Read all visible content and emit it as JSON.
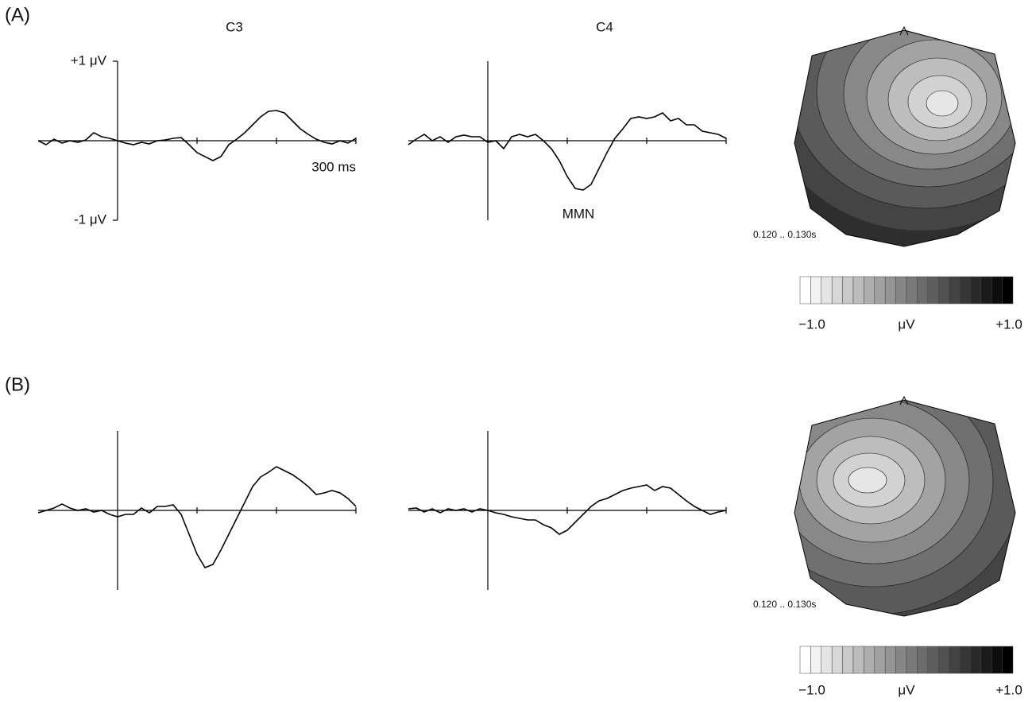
{
  "panels": [
    {
      "label": "(A)",
      "topomap_label": "0.120 .. 0.130s",
      "colorbar_labels": [
        "−1.0",
        "μV",
        "+1.0"
      ]
    },
    {
      "label": "(B)",
      "topomap_label": "0.120 .. 0.130s",
      "colorbar_labels": [
        "−1.0",
        "μV",
        "+1.0"
      ]
    }
  ],
  "chart_data": [
    {
      "type": "line",
      "title": "C3",
      "color": "#000000",
      "xlim": [
        -100,
        300
      ],
      "xticks": [
        100,
        200,
        {
          "value": 300,
          "label": "300 ms"
        }
      ],
      "ylim": [
        -1,
        1
      ],
      "yticks": [
        {
          "value": 1,
          "label": "+1 μV"
        },
        {
          "value": -1,
          "label": "-1 μV"
        }
      ],
      "x": [
        -100,
        -90,
        -80,
        -70,
        -60,
        -50,
        -40,
        -30,
        -20,
        -10,
        0,
        10,
        20,
        30,
        40,
        50,
        60,
        70,
        80,
        90,
        100,
        110,
        120,
        130,
        140,
        150,
        160,
        170,
        180,
        190,
        200,
        210,
        220,
        230,
        240,
        250,
        260,
        270,
        280,
        290,
        300
      ],
      "values": [
        0,
        -0.05,
        0.02,
        -0.03,
        0,
        -0.02,
        0.01,
        0.1,
        0.05,
        0.03,
        0,
        -0.03,
        -0.05,
        -0.02,
        -0.04,
        0,
        0.01,
        0.03,
        0.04,
        -0.05,
        -0.15,
        -0.2,
        -0.25,
        -0.2,
        -0.05,
        0.02,
        0.1,
        0.2,
        0.3,
        0.37,
        0.38,
        0.35,
        0.25,
        0.15,
        0.08,
        0.02,
        -0.02,
        -0.04,
        0,
        -0.03,
        0.03
      ]
    },
    {
      "type": "line",
      "title": "C4",
      "annotation": "MMN",
      "color": "#000000",
      "xlim": [
        -100,
        300
      ],
      "xticks": [
        100,
        200,
        300
      ],
      "ylim": [
        -1,
        1
      ],
      "x": [
        -100,
        -90,
        -80,
        -70,
        -60,
        -50,
        -40,
        -30,
        -20,
        -10,
        0,
        10,
        20,
        30,
        40,
        50,
        60,
        70,
        80,
        90,
        100,
        110,
        120,
        130,
        140,
        150,
        160,
        170,
        180,
        190,
        200,
        210,
        220,
        230,
        240,
        250,
        260,
        270,
        280,
        290,
        300
      ],
      "values": [
        -0.05,
        0.02,
        0.08,
        0,
        0.05,
        -0.02,
        0.05,
        0.07,
        0.05,
        0.05,
        -0.02,
        0,
        -0.1,
        0.05,
        0.08,
        0.05,
        0.08,
        0,
        -0.1,
        -0.25,
        -0.45,
        -0.6,
        -0.62,
        -0.55,
        -0.35,
        -0.15,
        0.03,
        0.15,
        0.28,
        0.3,
        0.28,
        0.3,
        0.35,
        0.25,
        0.28,
        0.2,
        0.2,
        0.12,
        0.1,
        0.08,
        0.03
      ]
    },
    {
      "type": "line",
      "color": "#000000",
      "xlim": [
        -100,
        300
      ],
      "xticks": [
        100,
        200,
        300
      ],
      "ylim": [
        -1,
        1
      ],
      "x": [
        -100,
        -90,
        -80,
        -70,
        -60,
        -50,
        -40,
        -30,
        -20,
        -10,
        0,
        10,
        20,
        30,
        40,
        50,
        60,
        70,
        80,
        90,
        100,
        110,
        120,
        130,
        140,
        150,
        160,
        170,
        180,
        190,
        200,
        210,
        220,
        230,
        240,
        250,
        260,
        270,
        280,
        290,
        300
      ],
      "values": [
        -0.03,
        0,
        0.03,
        0.08,
        0.03,
        0,
        0.02,
        -0.02,
        0,
        -0.05,
        -0.08,
        -0.05,
        -0.05,
        0.03,
        -0.03,
        0.05,
        0.05,
        0.07,
        -0.05,
        -0.3,
        -0.55,
        -0.72,
        -0.68,
        -0.5,
        -0.3,
        -0.1,
        0.1,
        0.3,
        0.42,
        0.48,
        0.55,
        0.5,
        0.45,
        0.38,
        0.3,
        0.2,
        0.22,
        0.25,
        0.22,
        0.15,
        0.05
      ]
    },
    {
      "type": "line",
      "color": "#000000",
      "xlim": [
        -100,
        300
      ],
      "xticks": [
        100,
        200,
        300
      ],
      "ylim": [
        -1,
        1
      ],
      "x": [
        -100,
        -90,
        -80,
        -70,
        -60,
        -50,
        -40,
        -30,
        -20,
        -10,
        0,
        10,
        20,
        30,
        40,
        50,
        60,
        70,
        80,
        90,
        100,
        110,
        120,
        130,
        140,
        150,
        160,
        170,
        180,
        190,
        200,
        210,
        220,
        230,
        240,
        250,
        260,
        270,
        280,
        290,
        300
      ],
      "values": [
        0.02,
        0.03,
        -0.02,
        0.02,
        -0.03,
        0.02,
        0,
        0.02,
        -0.02,
        0.02,
        0,
        -0.03,
        -0.05,
        -0.08,
        -0.1,
        -0.12,
        -0.12,
        -0.18,
        -0.22,
        -0.3,
        -0.25,
        -0.15,
        -0.05,
        0.05,
        0.12,
        0.15,
        0.2,
        0.25,
        0.28,
        0.3,
        0.32,
        0.25,
        0.3,
        0.28,
        0.2,
        0.12,
        0.05,
        0,
        -0.05,
        -0.02,
        0
      ]
    }
  ]
}
